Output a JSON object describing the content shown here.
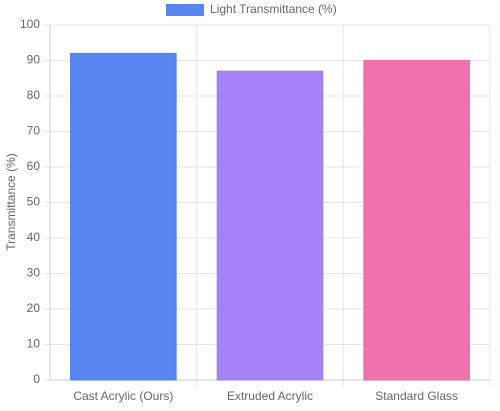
{
  "chart_data": {
    "type": "bar",
    "y_label": "Transmittance (%)",
    "categories": [
      "Cast Acrylic (Ours)",
      "Extruded Acrylic",
      "Standard Glass"
    ],
    "series": [
      {
        "name": "Light Transmittance (%)",
        "colors": [
          "#4f7ff0",
          "#a07cf6",
          "#ef6aa9"
        ],
        "values": [
          92,
          87,
          90
        ]
      }
    ],
    "ylim": [
      0,
      100
    ],
    "yticks": [
      0,
      10,
      20,
      30,
      40,
      50,
      60,
      70,
      80,
      90,
      100
    ],
    "grid": true
  }
}
